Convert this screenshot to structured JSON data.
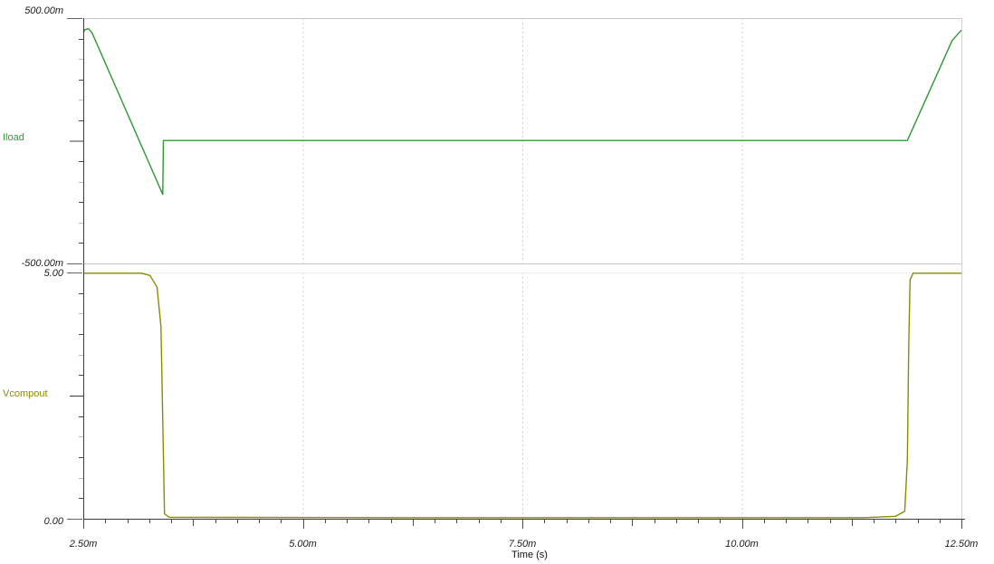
{
  "colors": {
    "iload": "#2e992e",
    "vcompout": "#8b8b00",
    "axis": "#3c3c3c",
    "grid": "#c8c8c8",
    "grid_light": "#ededed",
    "grid_dashed": "#d0d0d0",
    "frame": "#d4d4d4",
    "tick_dark": "#4a4a4a",
    "tick_label_dash": "#666666",
    "tick_light": "#b8b8b8",
    "text": "#1c1c1c"
  },
  "x_axis": {
    "label": "Time (s)",
    "unit": "ms",
    "xmin": 2.5,
    "xmax": 12.5,
    "minor_step": 0.25,
    "major_ticks": [
      {
        "value": 2.5,
        "label": "2.50m"
      },
      {
        "value": 5.0,
        "label": "5.00m"
      },
      {
        "value": 7.5,
        "label": "7.50m"
      },
      {
        "value": 10.0,
        "label": "10.00m"
      },
      {
        "value": 12.5,
        "label": "12.50m"
      }
    ]
  },
  "chart_data": [
    {
      "type": "line",
      "name": "Iload",
      "unit": "A",
      "line_color": "#2e992e",
      "y_axis": {
        "ymin": -0.5,
        "ymax": 0.5,
        "max_label": "500.00m",
        "min_label": "-500.00m",
        "minor_divisions": 12
      },
      "points": [
        [
          2.5,
          0.441
        ],
        [
          2.52,
          0.453
        ],
        [
          2.56,
          0.457
        ],
        [
          2.6,
          0.44
        ],
        [
          3.405,
          -0.219
        ],
        [
          3.412,
          0.001
        ],
        [
          11.885,
          0.001
        ],
        [
          12.395,
          0.409
        ],
        [
          12.44,
          0.427
        ],
        [
          12.5,
          0.451
        ]
      ]
    },
    {
      "type": "line",
      "name": "Vcompout",
      "unit": "V",
      "line_color": "#8b8b00",
      "y_axis": {
        "ymin": 0,
        "ymax": 5,
        "max_label": "5.00",
        "min_label": "0.00",
        "minor_divisions": 12
      },
      "points": [
        [
          2.5,
          4.985
        ],
        [
          3.165,
          4.985
        ],
        [
          3.26,
          4.94
        ],
        [
          3.34,
          4.7
        ],
        [
          3.385,
          3.9
        ],
        [
          3.41,
          1.5
        ],
        [
          3.425,
          0.1
        ],
        [
          3.48,
          0.03
        ],
        [
          6.0,
          0.022
        ],
        [
          11.4,
          0.022
        ],
        [
          11.75,
          0.05
        ],
        [
          11.855,
          0.15
        ],
        [
          11.885,
          1.2
        ],
        [
          11.9,
          3.5
        ],
        [
          11.915,
          4.85
        ],
        [
          11.95,
          4.985
        ],
        [
          12.5,
          4.985
        ]
      ]
    }
  ]
}
